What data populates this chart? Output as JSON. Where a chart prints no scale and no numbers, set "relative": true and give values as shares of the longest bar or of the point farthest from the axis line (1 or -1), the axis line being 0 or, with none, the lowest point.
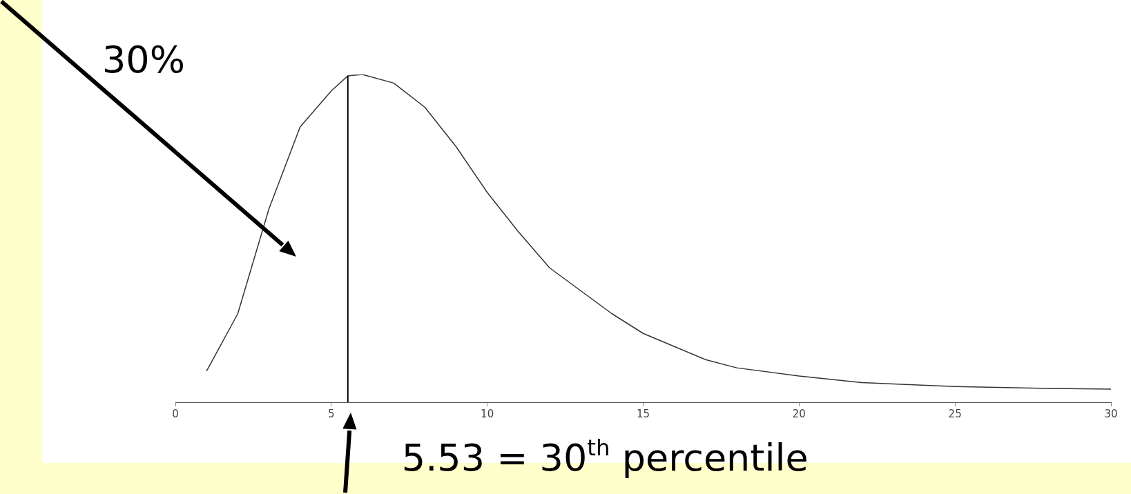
{
  "chart_data": {
    "type": "line",
    "relative": true,
    "x": [
      1,
      2,
      3,
      4,
      5,
      5.53,
      6,
      7,
      8,
      9,
      10,
      11,
      12,
      13,
      14,
      15,
      16,
      17,
      18,
      20,
      22,
      25,
      28,
      30
    ],
    "series": [
      {
        "color": "#333333",
        "values": [
          0.095,
          0.27,
          0.59,
          0.84,
          0.95,
          0.996,
          1,
          0.974,
          0.9,
          0.78,
          0.64,
          0.52,
          0.41,
          0.34,
          0.27,
          0.21,
          0.17,
          0.13,
          0.105,
          0.08,
          0.06,
          0.048,
          0.042,
          0.04
        ]
      }
    ],
    "xlim": [
      0,
      30
    ],
    "xticks": [
      0,
      5,
      10,
      15,
      20,
      25,
      30
    ],
    "marker": "none",
    "line_style": "solid",
    "ref_lines": [
      {
        "axis": "x",
        "value": 5.53,
        "label": "5.53 = 30$^{th}$ percentile",
        "color": "#000000"
      }
    ],
    "annotations": [
      "30%"
    ]
  }
}
